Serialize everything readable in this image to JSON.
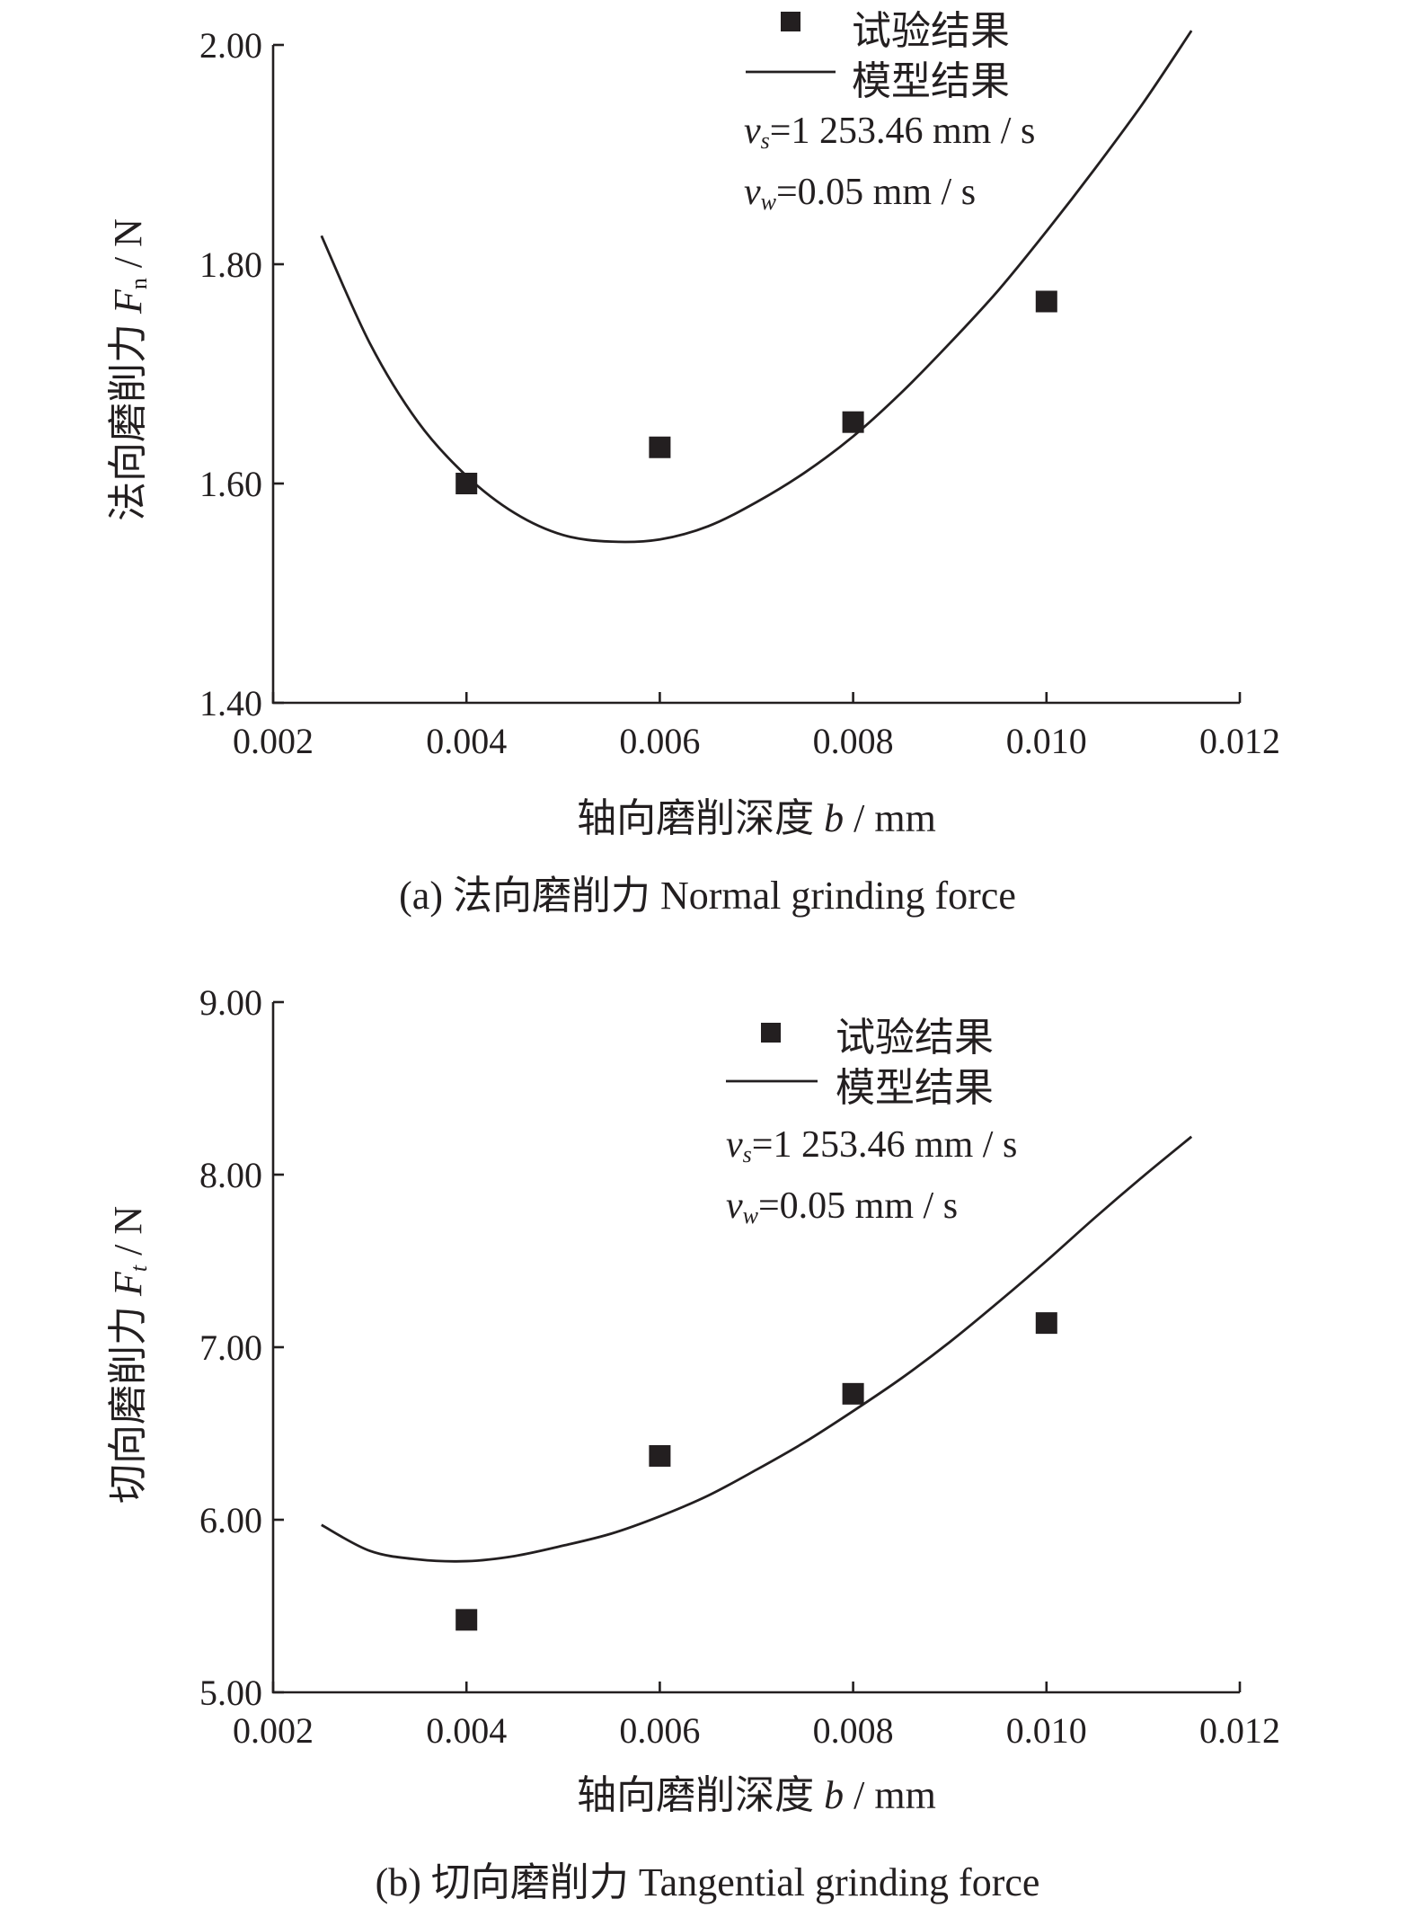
{
  "chart_data": [
    {
      "type": "scatter",
      "panel": "a",
      "caption": "(a) 法向磨削力 Normal grinding force",
      "xlabel_text": "轴向磨削深度",
      "xlabel_var": "b",
      "xlabel_unit": " / mm",
      "ylabel_text": "法向磨削力",
      "ylabel_var": "F",
      "ylabel_sub": "n",
      "ylabel_unit": " / N",
      "xlim": [
        0.002,
        0.012
      ],
      "ylim": [
        1.4,
        2.0
      ],
      "x_ticks": [
        "0.002",
        "0.004",
        "0.006",
        "0.008",
        "0.010",
        "0.012"
      ],
      "y_ticks": [
        "1.40",
        "1.60",
        "1.80",
        "2.00"
      ],
      "legend": {
        "points": "试验结果",
        "line": "模型结果"
      },
      "params": {
        "vs_var": "v",
        "vs_sub": "s",
        "vs_value": "=1 253.46 mm / s",
        "vw_var": "v",
        "vw_sub": "w",
        "vw_value": "=0.05 mm / s"
      },
      "series": [
        {
          "name": "试验结果",
          "kind": "points",
          "x": [
            0.004,
            0.006,
            0.008,
            0.01
          ],
          "y": [
            1.6,
            1.633,
            1.656,
            1.766
          ]
        },
        {
          "name": "模型结果",
          "kind": "line",
          "x": [
            0.0025,
            0.003,
            0.0035,
            0.004,
            0.0045,
            0.005,
            0.0055,
            0.006,
            0.0065,
            0.007,
            0.0075,
            0.008,
            0.0085,
            0.009,
            0.0095,
            0.01,
            0.0105,
            0.011,
            0.0115
          ],
          "y": [
            1.826,
            1.728,
            1.656,
            1.607,
            1.573,
            1.553,
            1.547,
            1.549,
            1.561,
            1.583,
            1.61,
            1.643,
            1.683,
            1.728,
            1.776,
            1.83,
            1.887,
            1.947,
            2.013
          ]
        }
      ]
    },
    {
      "type": "scatter",
      "panel": "b",
      "caption": "(b) 切向磨削力 Tangential grinding force",
      "xlabel_text": "轴向磨削深度",
      "xlabel_var": "b",
      "xlabel_unit": " / mm",
      "ylabel_text": "切向磨削力",
      "ylabel_var": "F",
      "ylabel_sub": "t",
      "ylabel_unit": " / N",
      "xlim": [
        0.002,
        0.012
      ],
      "ylim": [
        5.0,
        9.0
      ],
      "x_ticks": [
        "0.002",
        "0.004",
        "0.006",
        "0.008",
        "0.010",
        "0.012"
      ],
      "y_ticks": [
        "5.00",
        "6.00",
        "7.00",
        "8.00",
        "9.00"
      ],
      "legend": {
        "points": "试验结果",
        "line": "模型结果"
      },
      "params": {
        "vs_var": "v",
        "vs_sub": "s",
        "vs_value": "=1 253.46 mm / s",
        "vw_var": "v",
        "vw_sub": "w",
        "vw_value": "=0.05 mm / s"
      },
      "series": [
        {
          "name": "试验结果",
          "kind": "points",
          "x": [
            0.004,
            0.006,
            0.008,
            0.01
          ],
          "y": [
            5.42,
            6.37,
            6.73,
            7.14
          ]
        },
        {
          "name": "模型结果",
          "kind": "line",
          "x": [
            0.0025,
            0.003,
            0.0035,
            0.004,
            0.0045,
            0.005,
            0.0055,
            0.006,
            0.0065,
            0.007,
            0.0075,
            0.008,
            0.0085,
            0.009,
            0.0095,
            0.01,
            0.0105,
            0.011,
            0.0115
          ],
          "y": [
            5.97,
            5.82,
            5.77,
            5.76,
            5.79,
            5.85,
            5.92,
            6.02,
            6.14,
            6.29,
            6.45,
            6.63,
            6.82,
            7.03,
            7.26,
            7.5,
            7.75,
            7.99,
            8.22
          ]
        }
      ]
    }
  ]
}
